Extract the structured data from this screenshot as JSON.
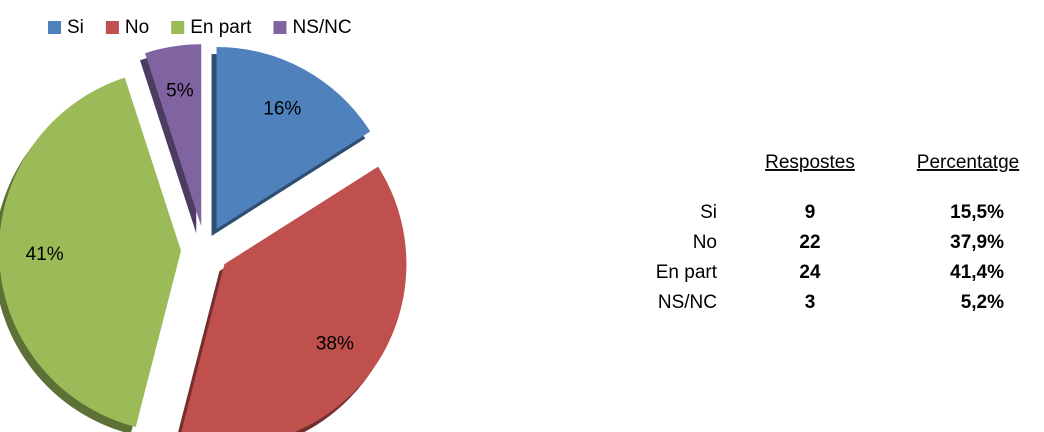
{
  "chart_data": {
    "type": "pie",
    "categories": [
      "Si",
      "No",
      "En part",
      "NS/NC"
    ],
    "values": [
      16,
      38,
      41,
      5
    ],
    "value_labels": [
      "16%",
      "38%",
      "41%",
      "5%"
    ],
    "colors": [
      "#4f81bd",
      "#c0504d",
      "#9bbb59",
      "#8064a2"
    ],
    "legend": "top"
  },
  "table": {
    "headers": [
      "Respostes",
      "Percentatge"
    ],
    "rows": [
      [
        "Si",
        "9",
        "15,5%"
      ],
      [
        "No",
        "22",
        "37,9%"
      ],
      [
        "En part",
        "24",
        "41,4%"
      ],
      [
        "NS/NC",
        "3",
        "5,2%"
      ]
    ]
  }
}
